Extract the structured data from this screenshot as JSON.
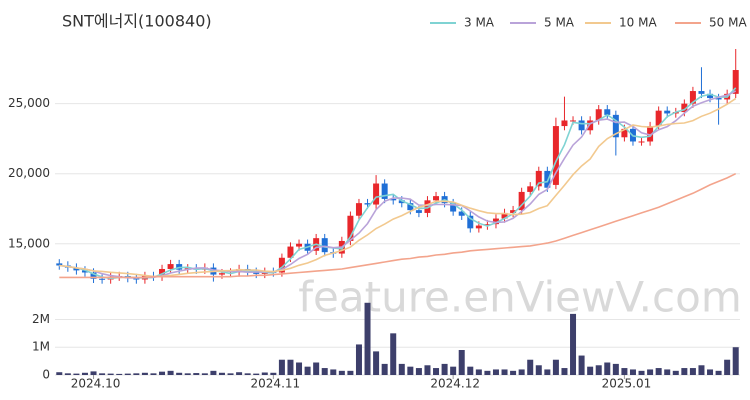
{
  "chart_data": {
    "type": "candlestick",
    "title": "SNT에너지(100840)",
    "watermark": "feature.enViewV.com",
    "legend": "top-right",
    "grid": true,
    "up_color": "#e8272b",
    "down_color": "#1f6fd6",
    "categories": [
      null,
      null,
      null,
      null,
      "2024.10",
      null,
      null,
      null,
      null,
      null,
      null,
      null,
      null,
      null,
      null,
      null,
      null,
      null,
      null,
      null,
      null,
      null,
      null,
      null,
      null,
      "2024.11",
      null,
      null,
      null,
      null,
      null,
      null,
      null,
      null,
      null,
      null,
      null,
      null,
      null,
      null,
      null,
      null,
      null,
      null,
      null,
      null,
      "2024.12",
      null,
      null,
      null,
      null,
      null,
      null,
      null,
      null,
      null,
      null,
      null,
      null,
      null,
      null,
      null,
      null,
      null,
      null,
      null,
      "2025.01",
      null,
      null,
      null,
      null,
      null,
      null,
      null,
      null,
      null,
      null,
      null,
      null,
      null
    ],
    "open": [
      13600,
      13450,
      13300,
      13100,
      12950,
      12500,
      12450,
      12650,
      12700,
      12550,
      12450,
      12700,
      12650,
      13200,
      13550,
      13150,
      13250,
      13150,
      13300,
      12800,
      12900,
      12950,
      13200,
      13000,
      12850,
      13000,
      12950,
      14000,
      14800,
      15000,
      14500,
      15400,
      14400,
      14300,
      15200,
      17000,
      17900,
      17800,
      19300,
      18200,
      18100,
      17900,
      17400,
      17200,
      18100,
      18400,
      17900,
      17300,
      17000,
      16100,
      16300,
      16400,
      16800,
      17200,
      17400,
      18700,
      19100,
      20200,
      19200,
      23400,
      23800,
      23800,
      23100,
      23800,
      24600,
      24200,
      22600,
      23200,
      22300,
      22300,
      23400,
      24500,
      24300,
      24400,
      25000,
      25900,
      25700,
      25400,
      25300,
      25700
    ],
    "high": [
      13900,
      13750,
      13600,
      13400,
      13250,
      12800,
      12950,
      13000,
      13000,
      12850,
      13000,
      13000,
      13500,
      13850,
      13850,
      13550,
      13550,
      13600,
      13600,
      13200,
      13250,
      13500,
      13500,
      13300,
      13300,
      13300,
      14300,
      15100,
      15300,
      15300,
      15700,
      15700,
      14700,
      15500,
      17300,
      18200,
      18200,
      19900,
      19600,
      18500,
      18400,
      18200,
      17700,
      18400,
      18700,
      18700,
      18200,
      17600,
      17300,
      16600,
      16700,
      17100,
      17500,
      17700,
      19000,
      19400,
      20500,
      20500,
      24000,
      25500,
      24100,
      24100,
      24100,
      24900,
      24900,
      24500,
      23500,
      23500,
      22600,
      23700,
      24800,
      24800,
      24700,
      25300,
      26200,
      27600,
      26000,
      25700,
      26000,
      28900
    ],
    "low": [
      13150,
      13000,
      12800,
      12650,
      12200,
      12150,
      12150,
      12350,
      12250,
      12150,
      12150,
      12350,
      12350,
      12900,
      12850,
      12850,
      12850,
      12850,
      12300,
      12500,
      12600,
      12650,
      12700,
      12550,
      12550,
      12650,
      12650,
      13700,
      14500,
      14200,
      14200,
      14100,
      14000,
      14000,
      14900,
      16700,
      17500,
      17500,
      17900,
      17800,
      17600,
      17100,
      16900,
      16900,
      17800,
      17600,
      17000,
      16700,
      15800,
      15800,
      16000,
      16100,
      16500,
      16900,
      17100,
      18400,
      18800,
      18700,
      18900,
      23100,
      23500,
      22800,
      22800,
      23500,
      23900,
      21300,
      22300,
      22000,
      22000,
      22000,
      23100,
      24000,
      24000,
      24100,
      24700,
      25400,
      25100,
      23500,
      25000,
      25400
    ],
    "close": [
      13450,
      13300,
      13100,
      12950,
      12500,
      12450,
      12650,
      12700,
      12550,
      12450,
      12700,
      12650,
      13200,
      13550,
      13150,
      13250,
      13150,
      13300,
      12800,
      12900,
      12950,
      13200,
      13000,
      12850,
      13000,
      12950,
      14000,
      14800,
      15000,
      14500,
      15400,
      14400,
      14300,
      15200,
      17000,
      17900,
      17800,
      19300,
      18200,
      18100,
      17900,
      17400,
      17200,
      18100,
      18400,
      17900,
      17300,
      17000,
      16100,
      16300,
      16400,
      16800,
      17200,
      17400,
      18700,
      19100,
      20200,
      19000,
      23400,
      23800,
      23800,
      23100,
      23800,
      24600,
      24200,
      22600,
      23200,
      22300,
      22300,
      23400,
      24500,
      24300,
      24400,
      25000,
      25900,
      25700,
      25400,
      25300,
      25700,
      27400
    ],
    "ylim": [
      11700,
      29900
    ],
    "yticks": [
      {
        "value": 15000,
        "label": "15,000"
      },
      {
        "value": 20000,
        "label": "20,000"
      },
      {
        "value": 25000,
        "label": "25,000"
      }
    ],
    "ma": [
      {
        "name": "3 MA",
        "color": "#7fd3d3",
        "values": [
          13450,
          13380,
          13280,
          13120,
          12850,
          12630,
          12530,
          12600,
          12630,
          12570,
          12570,
          12600,
          12850,
          13130,
          13300,
          13320,
          13180,
          13230,
          13080,
          13000,
          12880,
          13020,
          13050,
          13020,
          12950,
          12930,
          13320,
          13920,
          14600,
          14770,
          14970,
          14770,
          14700,
          14630,
          15500,
          16700,
          17570,
          18330,
          18430,
          18530,
          18070,
          17800,
          17500,
          17570,
          17900,
          18130,
          17870,
          17400,
          16800,
          16470,
          16270,
          16500,
          16800,
          17130,
          17770,
          18400,
          19330,
          19430,
          20870,
          22070,
          23670,
          23570,
          23570,
          23830,
          24200,
          23800,
          23330,
          22700,
          22600,
          22670,
          23400,
          24070,
          24400,
          24570,
          25100,
          25530,
          25670,
          25470,
          25470,
          26130
        ]
      },
      {
        "name": "5 MA",
        "color": "#b9a3d9",
        "values": [
          13450,
          13380,
          13280,
          13200,
          13060,
          12860,
          12730,
          12650,
          12570,
          12560,
          12610,
          12610,
          12710,
          12910,
          13050,
          13160,
          13260,
          13280,
          13130,
          13080,
          13020,
          13030,
          12970,
          12980,
          13000,
          13000,
          13160,
          13520,
          13950,
          14250,
          14740,
          14820,
          14720,
          14760,
          15260,
          15760,
          16440,
          17440,
          18040,
          18260,
          18260,
          18180,
          17760,
          17740,
          17800,
          17800,
          17780,
          17740,
          17340,
          16920,
          16620,
          16520,
          16560,
          16820,
          17300,
          17840,
          18520,
          18880,
          20080,
          21100,
          22040,
          22620,
          23580,
          23820,
          23900,
          23660,
          23680,
          23380,
          22920,
          22760,
          23140,
          23360,
          23780,
          24320,
          24820,
          25060,
          25280,
          25460,
          25600,
          25900
        ]
      },
      {
        "name": "10 MA",
        "color": "#f2c98f",
        "values": [
          13450,
          13380,
          13280,
          13200,
          13060,
          13030,
          12960,
          12920,
          12870,
          12810,
          12740,
          12670,
          12680,
          12740,
          12810,
          12890,
          12940,
          12990,
          13020,
          13070,
          13090,
          13150,
          13130,
          13130,
          13040,
          13010,
          13100,
          13250,
          13460,
          13630,
          13870,
          14170,
          14340,
          14520,
          14760,
          15250,
          15630,
          16090,
          16400,
          16760,
          17010,
          17310,
          17600,
          17790,
          18030,
          18030,
          17980,
          17750,
          17540,
          17360,
          17210,
          17150,
          17150,
          17080,
          17110,
          17230,
          17520,
          17720,
          18450,
          19170,
          19930,
          20550,
          21050,
          21950,
          22500,
          22850,
          23150,
          23480,
          23370,
          23330,
          23400,
          23520,
          23580,
          23620,
          23790,
          24100,
          24320,
          24620,
          24960,
          25360
        ]
      },
      {
        "name": "50 MA",
        "color": "#f3a48c",
        "values": [
          12600,
          12600,
          12600,
          12600,
          12600,
          12600,
          12600,
          12600,
          12600,
          12600,
          12600,
          12650,
          12650,
          12650,
          12650,
          12650,
          12650,
          12650,
          12650,
          12650,
          12650,
          12700,
          12700,
          12750,
          12750,
          12800,
          12850,
          12900,
          12950,
          13000,
          13050,
          13100,
          13150,
          13200,
          13300,
          13400,
          13500,
          13600,
          13700,
          13800,
          13900,
          13950,
          14050,
          14100,
          14200,
          14250,
          14350,
          14400,
          14500,
          14550,
          14600,
          14650,
          14700,
          14750,
          14800,
          14850,
          14950,
          15050,
          15200,
          15400,
          15600,
          15800,
          16000,
          16200,
          16400,
          16600,
          16800,
          17000,
          17200,
          17400,
          17600,
          17850,
          18100,
          18350,
          18600,
          18900,
          19200,
          19450,
          19700,
          20000
        ]
      }
    ],
    "volume": {
      "color": "#3d3f6b",
      "ylim": [
        0,
        2700000
      ],
      "yticks": [
        0,
        {
          "value": 1000000,
          "label": "1M"
        },
        {
          "value": 2000000,
          "label": "2M"
        }
      ],
      "values": [
        100000,
        60000,
        50000,
        80000,
        130000,
        60000,
        50000,
        40000,
        50000,
        60000,
        80000,
        60000,
        120000,
        150000,
        80000,
        60000,
        70000,
        60000,
        150000,
        80000,
        60000,
        100000,
        60000,
        50000,
        90000,
        80000,
        550000,
        550000,
        450000,
        300000,
        450000,
        250000,
        200000,
        150000,
        150000,
        1100000,
        2600000,
        850000,
        400000,
        1500000,
        400000,
        300000,
        250000,
        350000,
        250000,
        400000,
        300000,
        900000,
        300000,
        200000,
        150000,
        200000,
        200000,
        150000,
        200000,
        550000,
        350000,
        200000,
        550000,
        250000,
        2200000,
        700000,
        300000,
        350000,
        450000,
        400000,
        250000,
        200000,
        150000,
        200000,
        250000,
        200000,
        150000,
        250000,
        250000,
        350000,
        200000,
        150000,
        550000,
        1000000
      ]
    }
  }
}
